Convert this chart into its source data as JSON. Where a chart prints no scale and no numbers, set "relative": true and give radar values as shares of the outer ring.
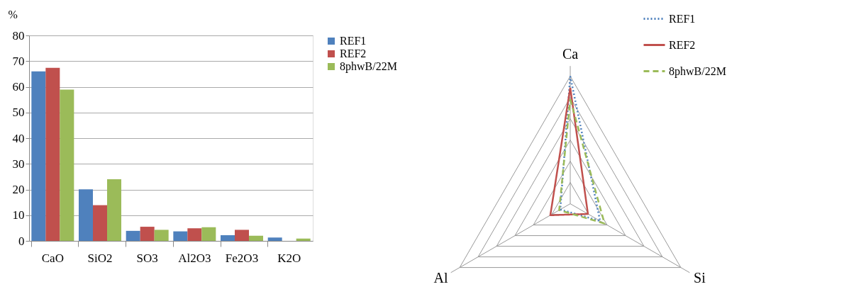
{
  "chart_data": [
    {
      "type": "bar",
      "ylabel": "%",
      "categories": [
        "CaO",
        "SiO2",
        "SO3",
        "Al2O3",
        "Fe2O3",
        "K2O"
      ],
      "series": [
        {
          "name": "REF1",
          "color": "#4f81bd",
          "values": [
            66.0,
            20.1,
            3.9,
            3.7,
            2.2,
            1.3
          ]
        },
        {
          "name": "REF2",
          "color": "#c0504d",
          "values": [
            67.4,
            13.9,
            5.5,
            4.9,
            4.3,
            0
          ]
        },
        {
          "name": "8phwB/22M",
          "color": "#9bbb59",
          "values": [
            58.9,
            24.0,
            4.3,
            5.3,
            2.0,
            0.9
          ]
        }
      ],
      "ylim": [
        0,
        80
      ],
      "yticks": [
        0,
        10,
        20,
        30,
        40,
        50,
        60,
        70,
        80
      ],
      "grid": "y",
      "legend": "right"
    },
    {
      "type": "radar",
      "relative": true,
      "categories": [
        "Ca",
        "Si",
        "Al"
      ],
      "series": [
        {
          "name": "REF1",
          "color": "#4f81bd",
          "line_style": "dotted",
          "values": [
            1.0,
            0.27,
            0.09
          ]
        },
        {
          "name": "REF2",
          "color": "#c0504d",
          "line_style": "solid",
          "values": [
            0.91,
            0.16,
            0.18
          ]
        },
        {
          "name": "8phwB/22M",
          "color": "#9bbb59",
          "line_style": "dashed",
          "values": [
            0.82,
            0.31,
            0.1
          ]
        }
      ],
      "legend": "top right"
    }
  ]
}
